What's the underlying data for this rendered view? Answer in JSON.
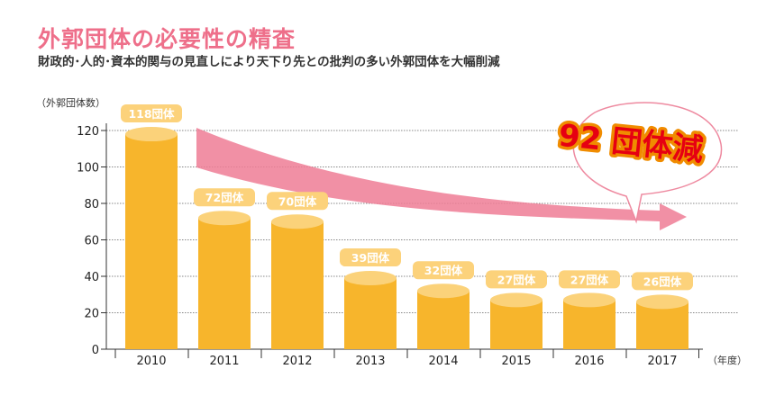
{
  "title": "外郭団体の必要性の精査",
  "subtitle": "財政的･人的･資本的関与の見直しにより天下り先との批判の多い外郭団体を大幅削減",
  "callout": "92 団体減",
  "colors": {
    "bar": "#f7b52c",
    "bar_top": "#fbd27a",
    "label_bg": "#fcd27b",
    "arrow": "#ee7d95",
    "title": "#ee6f8a",
    "callout_text": "#e60012",
    "callout_outline": "#f08c00"
  },
  "chart_data": {
    "type": "bar",
    "ylabel": "（外郭団体数）",
    "xlabel": "（年度）",
    "categories": [
      "2010",
      "2011",
      "2012",
      "2013",
      "2014",
      "2015",
      "2016",
      "2017"
    ],
    "values": [
      118,
      72,
      70,
      39,
      32,
      27,
      27,
      26
    ],
    "data_labels": [
      "118団体",
      "72団体",
      "70団体",
      "39団体",
      "32団体",
      "27団体",
      "27団体",
      "26団体"
    ],
    "yticks": [
      0,
      20,
      40,
      60,
      80,
      100,
      120
    ],
    "ylim": [
      0,
      120
    ],
    "grid": true
  }
}
